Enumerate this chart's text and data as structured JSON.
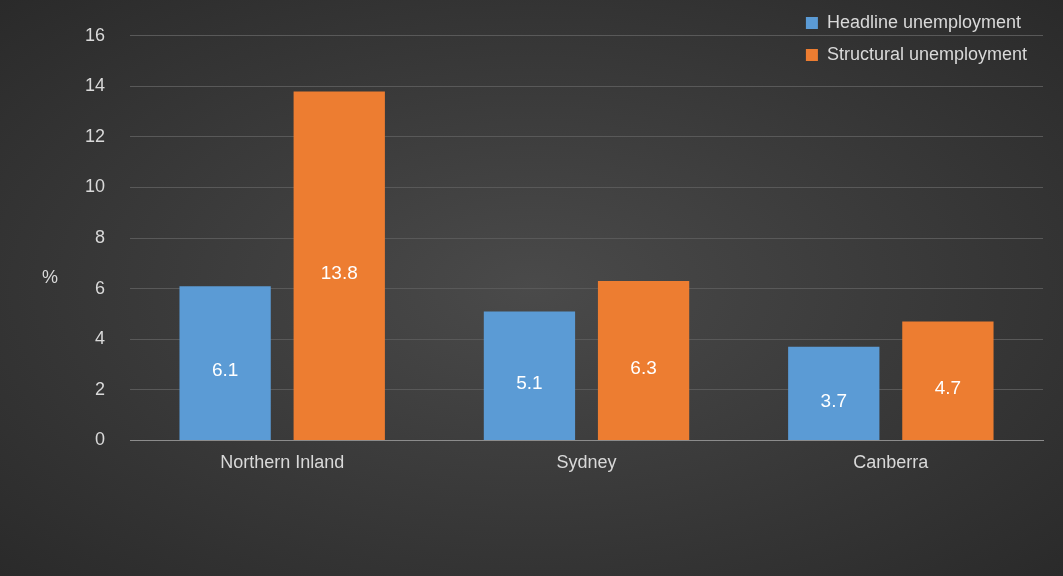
{
  "chart_data": {
    "type": "bar",
    "ylabel": "%",
    "categories": [
      "Northern Inland",
      "Sydney",
      "Canberra"
    ],
    "series": [
      {
        "name": "Headline unemployment",
        "color": "#5b9bd5",
        "values": [
          6.1,
          5.1,
          3.7
        ]
      },
      {
        "name": "Structural unemployment",
        "color": "#ed7d31",
        "values": [
          13.8,
          6.3,
          4.7
        ]
      }
    ],
    "ylim": [
      0,
      16
    ],
    "yticks": [
      0,
      2,
      4,
      6,
      8,
      10,
      12,
      14,
      16
    ],
    "grid": "y",
    "legend": "top right",
    "data_labels": true
  }
}
